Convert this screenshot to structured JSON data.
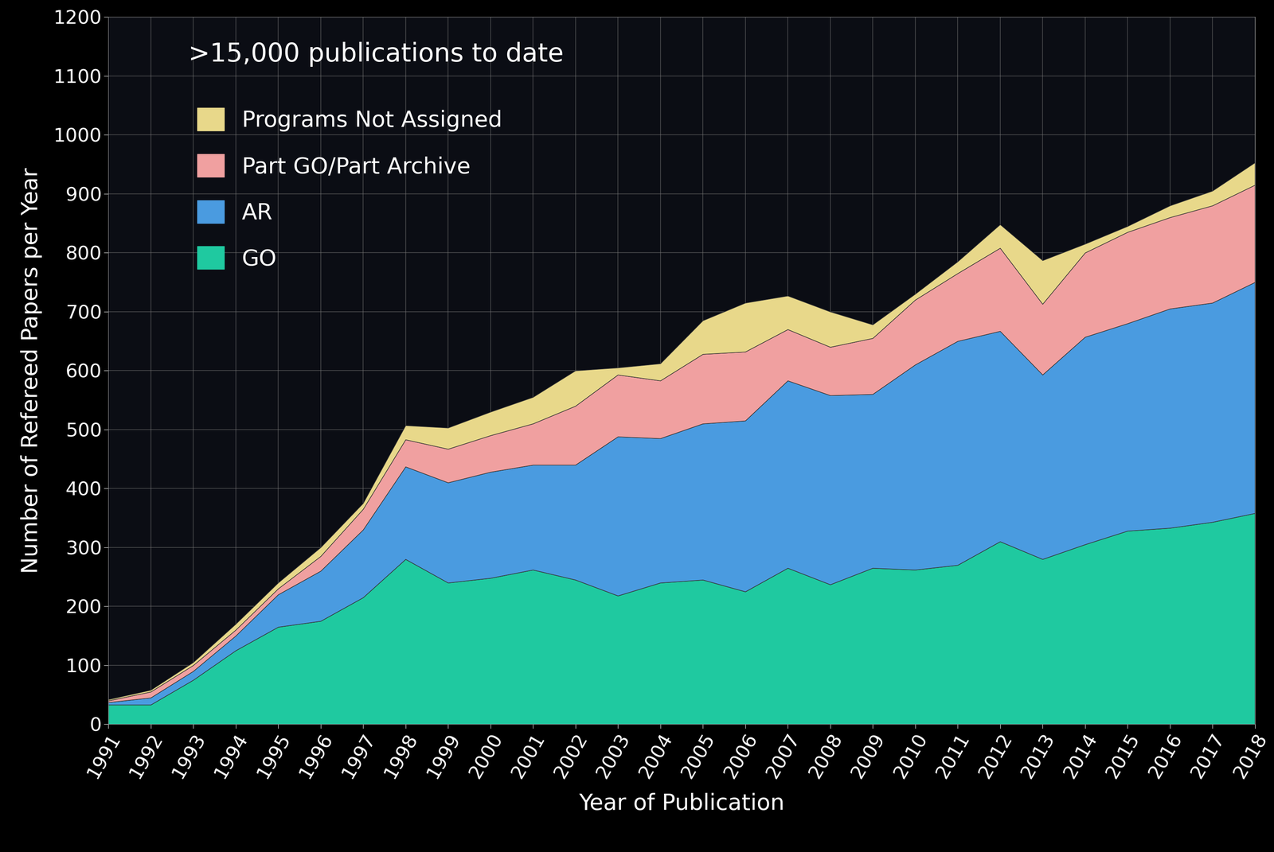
{
  "chart_data": {
    "type": "area",
    "stacked": true,
    "x_label": "Year of Publication",
    "y_label": "Number of Refereed Papers per Year",
    "annotations": [
      ">15,000 publications to date"
    ],
    "x": [
      1991,
      1992,
      1993,
      1994,
      1995,
      1996,
      1997,
      1998,
      1999,
      2000,
      2001,
      2002,
      2003,
      2004,
      2005,
      2006,
      2007,
      2008,
      2009,
      2010,
      2011,
      2012,
      2013,
      2014,
      2015,
      2016,
      2017,
      2018
    ],
    "series": [
      {
        "name": "GO",
        "color": "#1fc9a0",
        "values": [
          33,
          33,
          75,
          125,
          165,
          175,
          215,
          280,
          240,
          248,
          262,
          245,
          218,
          240,
          245,
          225,
          265,
          237,
          265,
          262,
          270,
          310,
          280,
          305,
          328,
          333,
          343,
          358
        ]
      },
      {
        "name": "AR",
        "color": "#4a9be0",
        "values": [
          4,
          12,
          15,
          25,
          55,
          85,
          115,
          157,
          170,
          180,
          178,
          195,
          270,
          245,
          265,
          290,
          318,
          321,
          295,
          348,
          380,
          357,
          313,
          352,
          352,
          372,
          372,
          392
        ]
      },
      {
        "name": "Part GO/Part Archive",
        "color": "#f0a0a0",
        "values": [
          3,
          10,
          10,
          10,
          10,
          25,
          35,
          46,
          57,
          62,
          70,
          100,
          105,
          98,
          118,
          117,
          87,
          82,
          95,
          110,
          115,
          141,
          120,
          143,
          155,
          155,
          165,
          165
        ]
      },
      {
        "name": "Programs Not Assigned",
        "color": "#e8d88a",
        "values": [
          2,
          3,
          5,
          10,
          10,
          15,
          10,
          24,
          36,
          40,
          45,
          60,
          12,
          29,
          57,
          83,
          57,
          60,
          23,
          10,
          20,
          40,
          74,
          15,
          10,
          20,
          25,
          38
        ]
      }
    ],
    "xlim": [
      1991,
      2018
    ],
    "xticks": [
      1991,
      1992,
      1993,
      1994,
      1995,
      1996,
      1997,
      1998,
      1999,
      2000,
      2001,
      2002,
      2003,
      2004,
      2005,
      2006,
      2007,
      2008,
      2009,
      2010,
      2011,
      2012,
      2013,
      2014,
      2015,
      2016,
      2017,
      2018
    ],
    "ylim": [
      0,
      1200
    ],
    "yticks": [
      0,
      100,
      200,
      300,
      400,
      500,
      600,
      700,
      800,
      900,
      1000,
      1100,
      1200
    ],
    "grid": true,
    "legend": "upper left"
  }
}
